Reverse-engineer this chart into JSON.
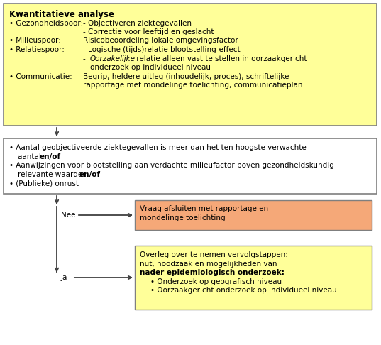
{
  "bg_color": "#ffffff",
  "box1_color": "#ffff99",
  "box1_border": "#7f7f7f",
  "box2_color": "#ffffff",
  "box2_border": "#7f7f7f",
  "box3_color": "#f5a878",
  "box3_border": "#7f7f7f",
  "box4_color": "#ffff99",
  "box4_border": "#7f7f7f",
  "box1_title": "Kwantitatieve analyse",
  "arrow_color": "#404040",
  "label_nee": "Nee",
  "label_ja": "Ja",
  "fs_title": 8.5,
  "fs_body": 7.5
}
